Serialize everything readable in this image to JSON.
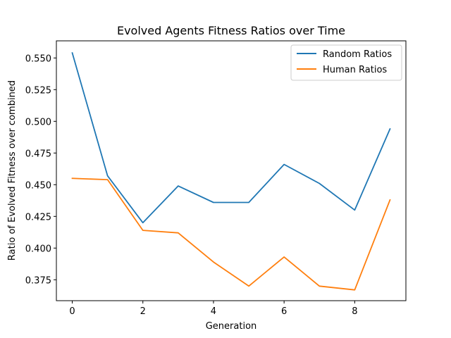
{
  "chart_data": {
    "type": "line",
    "title": "Evolved Agents Fitness Ratios over Time",
    "xlabel": "Generation",
    "ylabel": "Ratio of Evolved Fitness over combined",
    "xlim": [
      -0.45,
      9.45
    ],
    "ylim": [
      0.3585,
      0.5635
    ],
    "xticks": [
      0,
      2,
      4,
      6,
      8
    ],
    "xtick_labels": [
      "0",
      "2",
      "4",
      "6",
      "8"
    ],
    "yticks": [
      0.375,
      0.4,
      0.425,
      0.45,
      0.475,
      0.5,
      0.525,
      0.55
    ],
    "ytick_labels": [
      "0.375",
      "0.400",
      "0.425",
      "0.450",
      "0.475",
      "0.500",
      "0.525",
      "0.550"
    ],
    "x": [
      0,
      1,
      2,
      3,
      4,
      5,
      6,
      7,
      8,
      9
    ],
    "series": [
      {
        "name": "Random Ratios",
        "color": "#1f77b4",
        "values": [
          0.554,
          0.457,
          0.42,
          0.449,
          0.436,
          0.436,
          0.466,
          0.451,
          0.43,
          0.494
        ]
      },
      {
        "name": "Human Ratios",
        "color": "#ff7f0e",
        "values": [
          0.455,
          0.454,
          0.414,
          0.412,
          0.389,
          0.37,
          0.393,
          0.37,
          0.367,
          0.438
        ]
      }
    ],
    "grid": false,
    "legend": "top-right"
  }
}
